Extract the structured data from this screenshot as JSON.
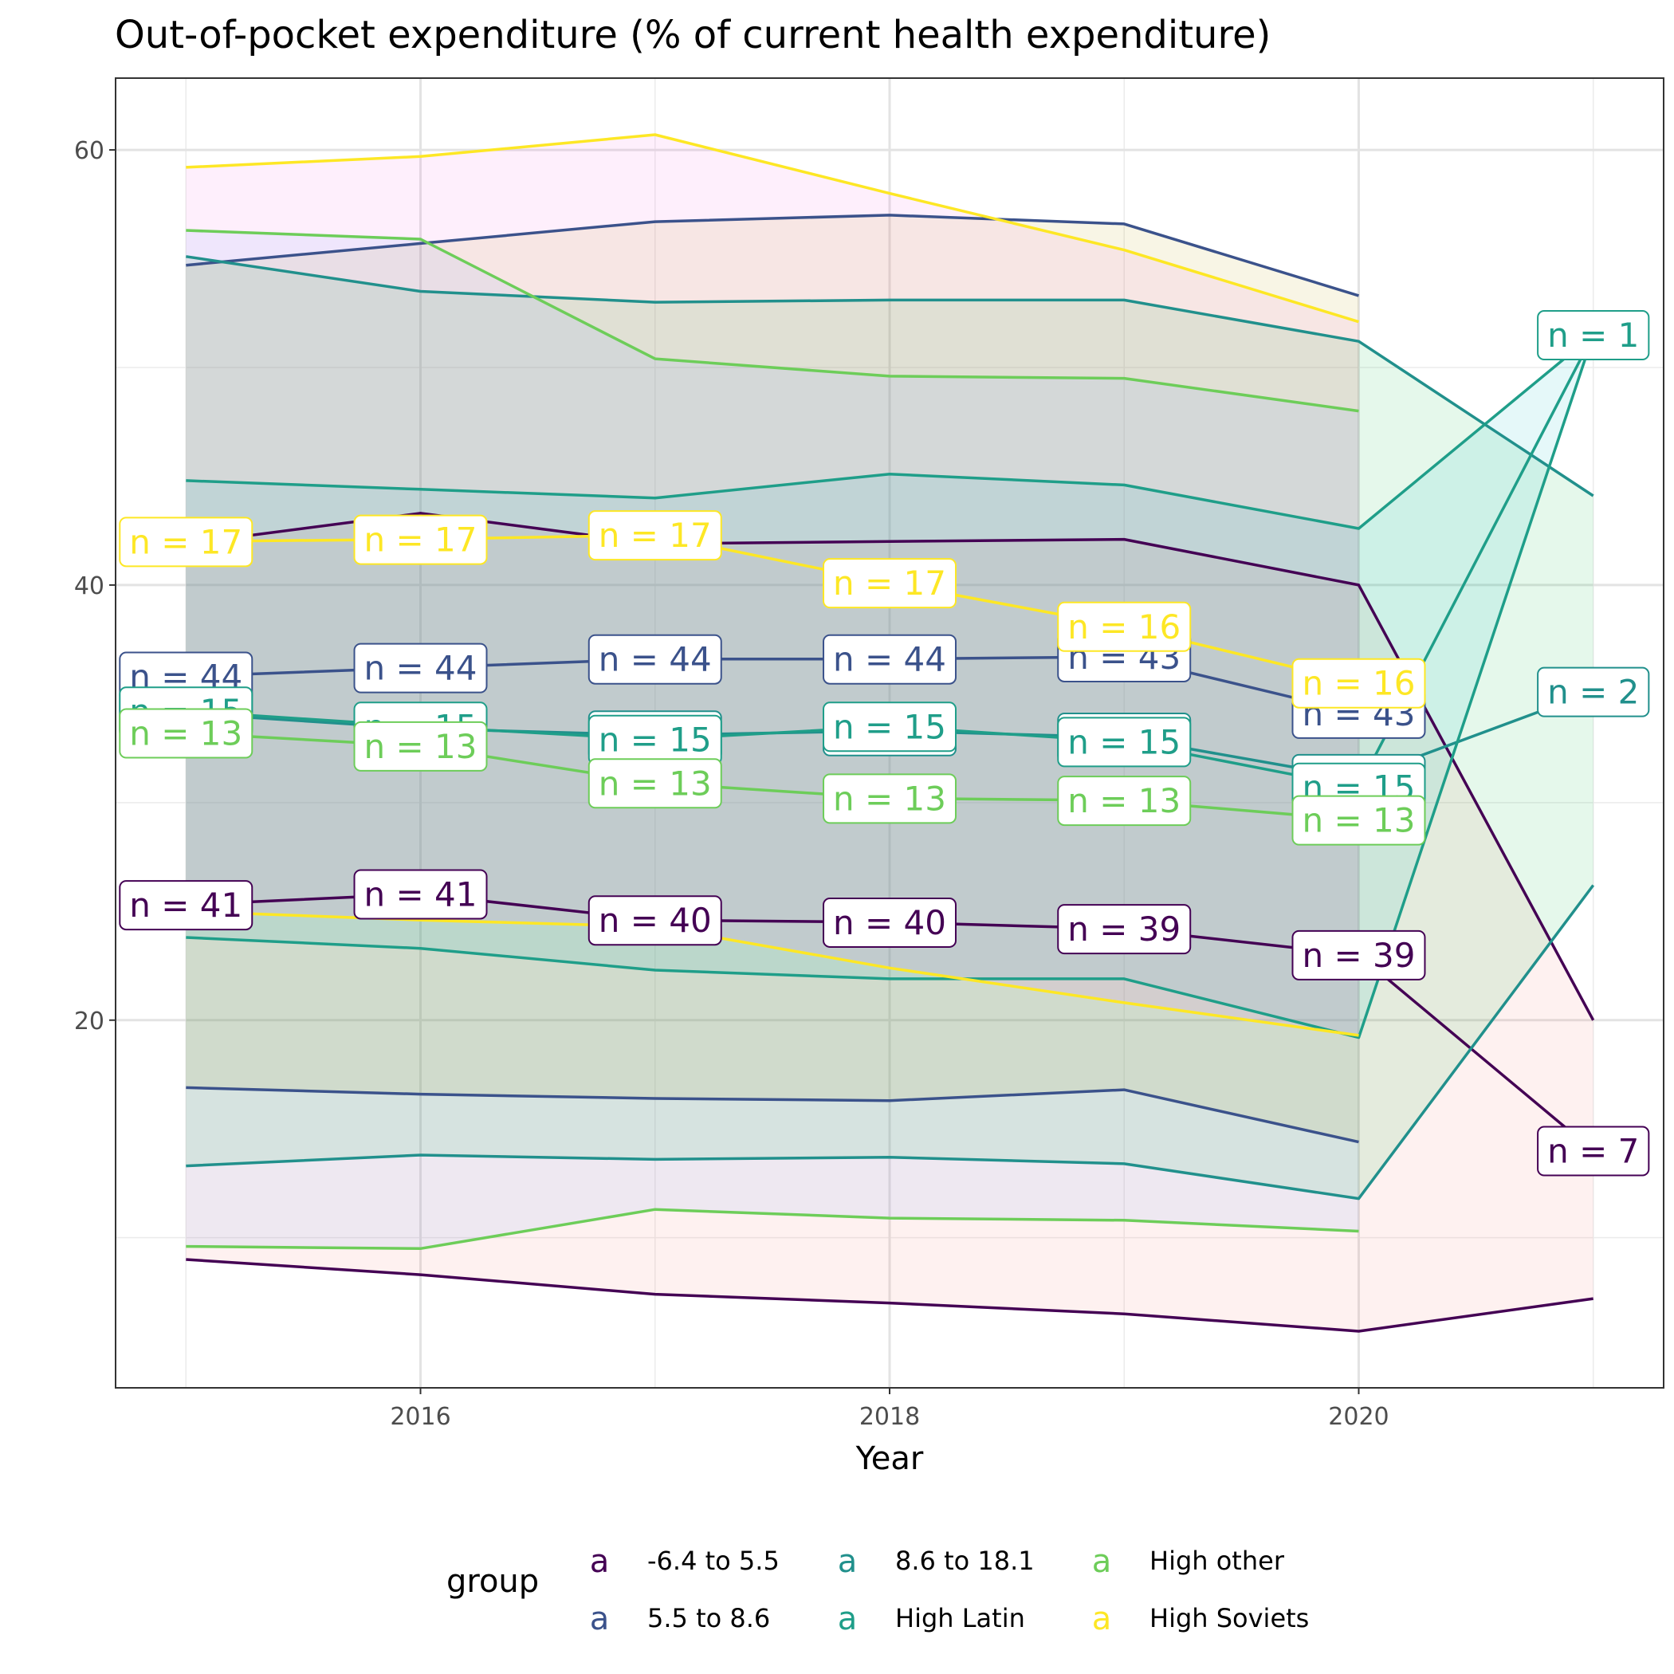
{
  "chart_data": {
    "type": "line",
    "title": "Out-of-pocket expenditure (% of current health expenditure)",
    "xlabel": "Year",
    "ylabel": "",
    "xlim": [
      2014.7,
      2021.3
    ],
    "ylim": [
      3.1,
      63.3
    ],
    "x_ticks": [
      2016,
      2018,
      2020
    ],
    "y_ticks": [
      20,
      40,
      60
    ],
    "grid": true,
    "legend": {
      "title": "group",
      "position": "bottom",
      "key_glyph": "a",
      "entries": [
        "-6.4 to 5.5",
        "5.5 to 8.6",
        "8.6 to 18.1",
        "High Latin",
        "High other",
        "High Soviets"
      ]
    },
    "series": [
      {
        "name": "-6.4 to 5.5",
        "color": "#440154",
        "fill": "#F8766D",
        "x": [
          2015,
          2016,
          2017,
          2018,
          2019,
          2020,
          2021
        ],
        "upper": [
          41.9,
          43.3,
          41.9,
          42.0,
          42.1,
          40.0,
          20.0
        ],
        "mean": [
          25.3,
          25.8,
          24.6,
          24.5,
          24.2,
          23.0,
          14.0
        ],
        "lower": [
          9.0,
          8.3,
          7.4,
          7.0,
          6.5,
          5.7,
          7.2
        ],
        "n_labels": [
          "n = 41",
          "n = 41",
          "n = 40",
          "n = 40",
          "n = 39",
          "n = 39",
          "n = 7"
        ]
      },
      {
        "name": "5.5 to 8.6",
        "color": "#3B528B",
        "fill": "#B79F00",
        "x": [
          2015,
          2016,
          2017,
          2018,
          2019,
          2020
        ],
        "upper": [
          54.7,
          55.7,
          56.7,
          57.0,
          56.6,
          53.3
        ],
        "mean": [
          35.8,
          36.2,
          36.6,
          36.6,
          36.7,
          34.1
        ],
        "lower": [
          16.9,
          16.6,
          16.4,
          16.3,
          16.8,
          14.4
        ],
        "n_labels": [
          "n = 44",
          "n = 44",
          "n = 44",
          "n = 44",
          "n = 43",
          "n = 43"
        ]
      },
      {
        "name": "8.6 to 18.1",
        "color": "#21908C",
        "fill": "#00BA38",
        "x": [
          2015,
          2016,
          2017,
          2018,
          2019,
          2020,
          2021
        ],
        "upper": [
          55.1,
          53.5,
          53.0,
          53.1,
          53.1,
          51.2,
          44.1
        ],
        "mean": [
          34.1,
          33.4,
          33.1,
          33.3,
          33.0,
          31.1,
          35.1
        ],
        "lower": [
          13.3,
          13.8,
          13.6,
          13.7,
          13.4,
          11.8,
          26.2
        ],
        "n_labels": [
          "n = 15",
          "n = 15",
          "n = 15",
          "n = 15",
          "n = 15",
          "n = 15",
          "n = 2"
        ]
      },
      {
        "name": "High Latin",
        "color": "#1F9E89",
        "fill": "#00BFC4",
        "x": [
          2015,
          2016,
          2017,
          2018,
          2019,
          2020,
          2021
        ],
        "upper": [
          44.8,
          44.4,
          44.0,
          45.1,
          44.6,
          42.6,
          51.5
        ],
        "mean": [
          34.2,
          33.5,
          32.9,
          33.5,
          32.8,
          30.7,
          51.5
        ],
        "lower": [
          23.8,
          23.3,
          22.3,
          21.9,
          21.9,
          19.2,
          51.5
        ],
        "n_labels": [
          "n = 15",
          "n = 15",
          "n = 15",
          "n = 15",
          "n = 15",
          "n = 15",
          "n = 1"
        ]
      },
      {
        "name": "High other",
        "color": "#6DCD59",
        "fill": "#619CFF",
        "x": [
          2015,
          2016,
          2017,
          2018,
          2019,
          2020
        ],
        "upper": [
          56.3,
          55.9,
          50.4,
          49.6,
          49.5,
          48.0
        ],
        "mean": [
          33.2,
          32.6,
          30.9,
          30.2,
          30.1,
          29.2
        ],
        "lower": [
          9.6,
          9.5,
          11.3,
          10.9,
          10.8,
          10.3
        ],
        "n_labels": [
          "n = 13",
          "n = 13",
          "n = 13",
          "n = 13",
          "n = 13",
          "n = 13"
        ]
      },
      {
        "name": "High Soviets",
        "color": "#FDE725",
        "fill": "#F564E3",
        "x": [
          2015,
          2016,
          2017,
          2018,
          2019,
          2020
        ],
        "upper": [
          59.2,
          59.7,
          60.7,
          58.0,
          55.4,
          52.1
        ],
        "mean": [
          42.0,
          42.1,
          42.3,
          40.1,
          38.1,
          35.5
        ],
        "lower": [
          25.0,
          24.6,
          24.3,
          22.4,
          20.8,
          19.3
        ],
        "n_labels": [
          "n = 17",
          "n = 17",
          "n = 17",
          "n = 17",
          "n = 16",
          "n = 16"
        ]
      }
    ]
  }
}
